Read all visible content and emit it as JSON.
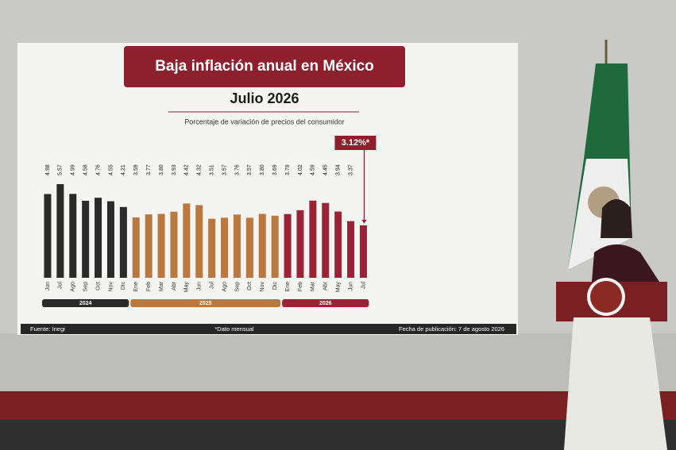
{
  "chart_data": {
    "type": "bar",
    "title": "Baja inflación anual en México",
    "subtitle": "Julio 2026",
    "y_label": "Porcentaje de variación de precios del consumidor",
    "categories": [
      "Jun",
      "Jul",
      "Ago",
      "Sep",
      "Oct",
      "Nov",
      "Dic",
      "Ene",
      "Feb",
      "Mar",
      "Abr",
      "May",
      "Jun",
      "Jul",
      "Ago",
      "Sep",
      "Oct",
      "Nov",
      "Dic",
      "Ene",
      "Feb",
      "Mar",
      "Abr",
      "May",
      "Jun",
      "Jul"
    ],
    "series": [
      {
        "name": "2024",
        "color": "#2a2a2a",
        "values": [
          4.98,
          5.57,
          4.99,
          4.58,
          4.76,
          4.55,
          4.21,
          null,
          null,
          null,
          null,
          null,
          null,
          null,
          null,
          null,
          null,
          null,
          null,
          null,
          null,
          null,
          null,
          null,
          null,
          null
        ],
        "value_labels": [
          "4.98",
          "5.57",
          "4.99",
          "4.58",
          "4.76",
          "4.55",
          "4.21",
          null,
          null,
          null,
          null,
          null,
          null,
          null,
          null,
          null,
          null,
          null,
          null,
          null,
          null,
          null,
          null,
          null,
          null,
          null
        ]
      },
      {
        "name": "2025",
        "color": "#b8783f",
        "values": [
          null,
          null,
          null,
          null,
          null,
          null,
          null,
          3.59,
          3.77,
          3.8,
          3.93,
          4.42,
          4.32,
          3.51,
          3.57,
          3.76,
          3.57,
          3.8,
          3.69,
          null,
          null,
          null,
          null,
          null,
          null,
          null
        ],
        "value_labels": [
          null,
          null,
          null,
          null,
          null,
          null,
          null,
          "3.59",
          "3.77",
          "3.80",
          "3.93",
          "4.42",
          "4.32",
          "3.51",
          "3.57",
          "3.76",
          "3.57",
          "3.80",
          "3.69",
          null,
          null,
          null,
          null,
          null,
          null,
          null
        ]
      },
      {
        "name": "2026",
        "color": "#9c2336",
        "values": [
          null,
          null,
          null,
          null,
          null,
          null,
          null,
          null,
          null,
          null,
          null,
          null,
          null,
          null,
          null,
          null,
          null,
          null,
          null,
          3.79,
          4.02,
          4.59,
          4.45,
          3.94,
          3.37,
          3.12
        ],
        "value_labels": [
          null,
          null,
          null,
          null,
          null,
          null,
          null,
          null,
          null,
          null,
          null,
          null,
          null,
          null,
          null,
          null,
          null,
          null,
          null,
          "3.79",
          "4.02",
          "4.59",
          "4.45",
          "3.94",
          "3.37",
          "3.12%*"
        ]
      }
    ],
    "source": "Fuente: Inegi",
    "note": "*Dato mensual",
    "date_note": "Fecha de publicación: 7 de agosto 2026"
  }
}
